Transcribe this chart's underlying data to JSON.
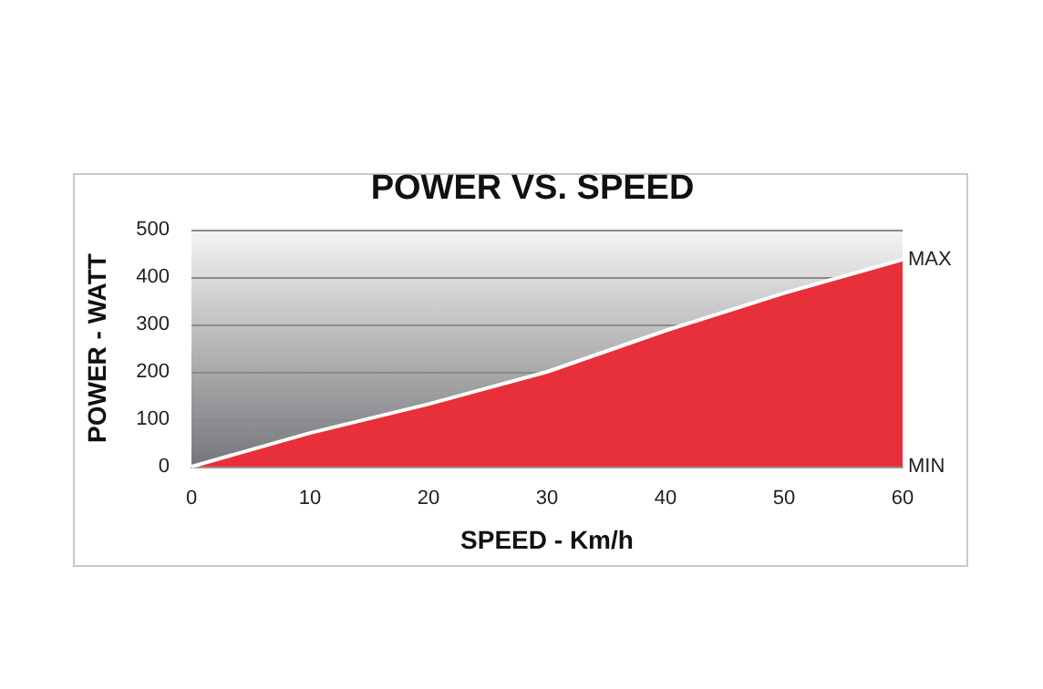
{
  "chart_data": {
    "type": "area",
    "title": "POWER VS. SPEED",
    "xlabel": "SPEED - Km/h",
    "ylabel": "POWER - WATT",
    "x": [
      0,
      10,
      20,
      30,
      40,
      50,
      60
    ],
    "series": [
      {
        "color": "#e8303a",
        "values": [
          0,
          71,
          132,
          200,
          287,
          366,
          437
        ]
      }
    ],
    "xlim": [
      0,
      60
    ],
    "xticks": [
      0,
      10,
      20,
      30,
      40,
      50,
      60
    ],
    "ylim": [
      0,
      500
    ],
    "yticks": [
      0,
      100,
      200,
      300,
      400,
      500
    ],
    "grid": "y",
    "annotations": [
      {
        "text": "MAX",
        "x": 60,
        "y": 437
      },
      {
        "text": "MIN",
        "x": 60,
        "y": 0
      }
    ]
  }
}
